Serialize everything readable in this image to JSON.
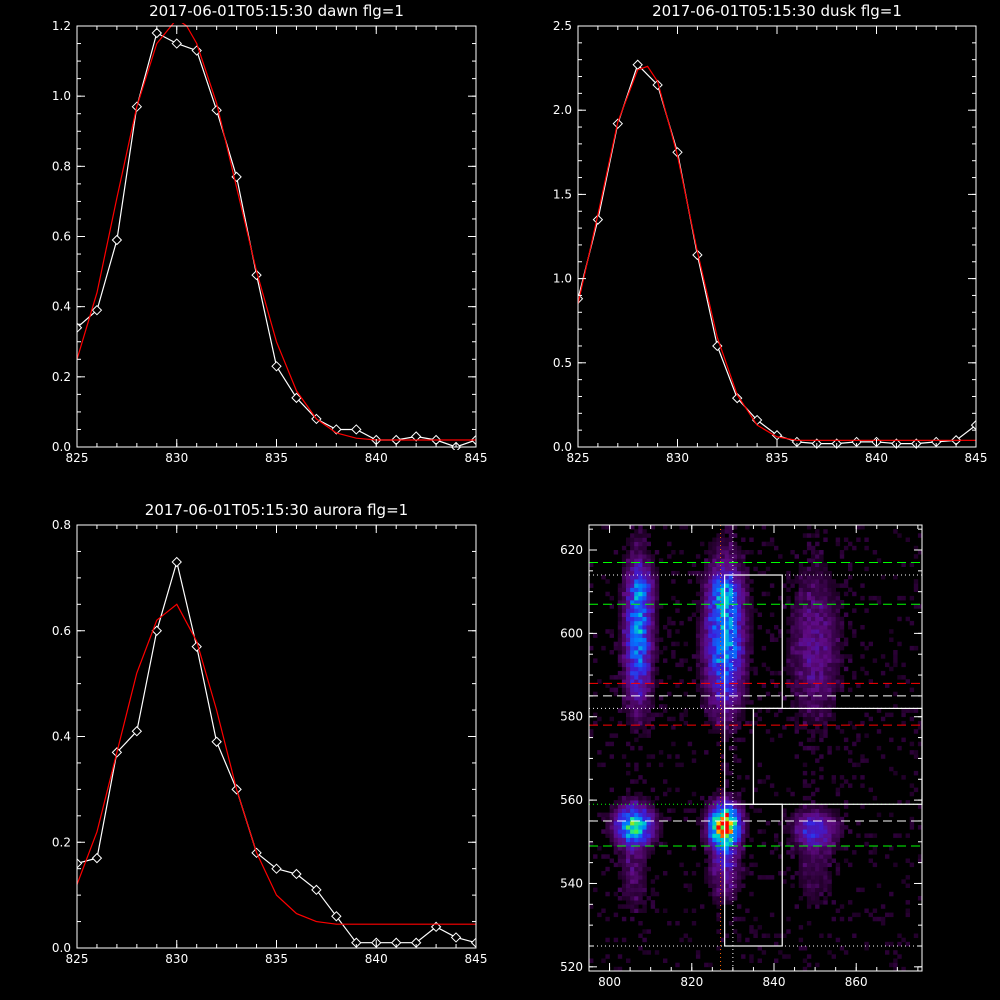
{
  "page": {
    "background": "#000000",
    "foreground": "#ffffff",
    "fit_color": "#ff0000"
  },
  "chart_data": [
    {
      "type": "line",
      "title": "2017-06-01T05:15:30 dawn flg=1",
      "xlim": [
        825,
        845
      ],
      "ylim": [
        0,
        1.2
      ],
      "x_ticks": [
        "825",
        "830",
        "835",
        "840",
        "845"
      ],
      "y_ticks": [
        "0.0",
        "0.2",
        "0.4",
        "0.6",
        "0.8",
        "1.0",
        "1.2"
      ],
      "series": [
        {
          "role": "data",
          "color": "#ffffff",
          "marker": "diamond",
          "x": [
            825,
            826,
            827,
            828,
            829,
            830,
            831,
            832,
            833,
            834,
            835,
            836,
            837,
            838,
            839,
            840,
            841,
            842,
            843,
            844,
            845
          ],
          "y": [
            0.34,
            0.39,
            0.59,
            0.97,
            1.18,
            1.15,
            1.13,
            0.96,
            0.77,
            0.49,
            0.23,
            0.14,
            0.08,
            0.05,
            0.05,
            0.02,
            0.02,
            0.03,
            0.02,
            0.0,
            0.02
          ]
        },
        {
          "role": "fit",
          "color": "#ff0000",
          "x": [
            825,
            826,
            827,
            828,
            829,
            830,
            830.5,
            831,
            832,
            833,
            834,
            835,
            836,
            837,
            838,
            839,
            840,
            841,
            842,
            843,
            844,
            845
          ],
          "y": [
            0.25,
            0.44,
            0.71,
            0.97,
            1.15,
            1.22,
            1.2,
            1.15,
            0.98,
            0.74,
            0.5,
            0.3,
            0.16,
            0.08,
            0.04,
            0.025,
            0.02,
            0.02,
            0.02,
            0.02,
            0.02,
            0.02
          ]
        }
      ]
    },
    {
      "type": "line",
      "title": "2017-06-01T05:15:30 dusk flg=1",
      "xlim": [
        825,
        845
      ],
      "ylim": [
        0,
        2.5
      ],
      "x_ticks": [
        "825",
        "830",
        "835",
        "840",
        "845"
      ],
      "y_ticks": [
        "0.0",
        "0.5",
        "1.0",
        "1.5",
        "2.0",
        "2.5"
      ],
      "series": [
        {
          "role": "data",
          "color": "#ffffff",
          "marker": "diamond",
          "x": [
            825,
            826,
            827,
            828,
            829,
            830,
            831,
            832,
            833,
            834,
            835,
            836,
            837,
            838,
            839,
            840,
            841,
            842,
            843,
            844,
            845
          ],
          "y": [
            0.88,
            1.35,
            1.92,
            2.27,
            2.15,
            1.75,
            1.14,
            0.6,
            0.29,
            0.16,
            0.07,
            0.03,
            0.02,
            0.02,
            0.03,
            0.03,
            0.02,
            0.02,
            0.03,
            0.04,
            0.13
          ]
        },
        {
          "role": "fit",
          "color": "#ff0000",
          "x": [
            825,
            826,
            827,
            828,
            828.5,
            829,
            830,
            831,
            832,
            833,
            834,
            835,
            836,
            837,
            838,
            839,
            840,
            841,
            842,
            843,
            844,
            845
          ],
          "y": [
            0.85,
            1.38,
            1.93,
            2.24,
            2.26,
            2.17,
            1.73,
            1.16,
            0.65,
            0.31,
            0.13,
            0.06,
            0.04,
            0.04,
            0.04,
            0.04,
            0.04,
            0.04,
            0.04,
            0.04,
            0.04,
            0.04
          ]
        }
      ]
    },
    {
      "type": "line",
      "title": "2017-06-01T05:15:30 aurora flg=1",
      "xlim": [
        825,
        845
      ],
      "ylim": [
        0,
        0.8
      ],
      "x_ticks": [
        "825",
        "830",
        "835",
        "840",
        "845"
      ],
      "y_ticks": [
        "0.0",
        "0.2",
        "0.4",
        "0.6",
        "0.8"
      ],
      "series": [
        {
          "role": "data",
          "color": "#ffffff",
          "marker": "diamond",
          "x": [
            825,
            826,
            827,
            828,
            829,
            830,
            831,
            832,
            833,
            834,
            835,
            836,
            837,
            838,
            839,
            840,
            841,
            842,
            843,
            844,
            845
          ],
          "y": [
            0.16,
            0.17,
            0.37,
            0.41,
            0.6,
            0.73,
            0.57,
            0.39,
            0.3,
            0.18,
            0.15,
            0.14,
            0.11,
            0.06,
            0.01,
            0.01,
            0.01,
            0.01,
            0.04,
            0.02,
            0.01
          ]
        },
        {
          "role": "fit",
          "color": "#ff0000",
          "x": [
            825,
            826,
            827,
            828,
            829,
            830,
            831,
            832,
            833,
            834,
            835,
            836,
            837,
            838,
            839,
            840,
            841,
            842,
            843,
            844,
            845
          ],
          "y": [
            0.12,
            0.22,
            0.37,
            0.52,
            0.62,
            0.65,
            0.58,
            0.45,
            0.3,
            0.18,
            0.1,
            0.065,
            0.05,
            0.045,
            0.045,
            0.045,
            0.045,
            0.045,
            0.045,
            0.045,
            0.045
          ]
        }
      ]
    },
    {
      "type": "heatmap",
      "title": "",
      "xlim": [
        795,
        876
      ],
      "ylim": [
        519,
        626
      ],
      "x_ticks": [
        "800",
        "820",
        "840",
        "860"
      ],
      "y_ticks": [
        "520",
        "540",
        "560",
        "580",
        "600",
        "620"
      ],
      "blobs": [
        {
          "x": 807,
          "y": 600,
          "sx": 2.2,
          "sy": 11,
          "amp": 0.45
        },
        {
          "x": 808,
          "y": 611,
          "sx": 2,
          "sy": 3,
          "amp": 0.18
        },
        {
          "x": 828,
          "y": 599,
          "sx": 3,
          "sy": 11,
          "amp": 0.5
        },
        {
          "x": 828,
          "y": 610,
          "sx": 2.5,
          "sy": 3,
          "amp": 0.2
        },
        {
          "x": 850,
          "y": 597,
          "sx": 4,
          "sy": 12,
          "amp": 0.16
        },
        {
          "x": 806,
          "y": 554,
          "sx": 3,
          "sy": 3,
          "amp": 0.6
        },
        {
          "x": 806,
          "y": 544,
          "sx": 2.5,
          "sy": 8,
          "amp": 0.1
        },
        {
          "x": 828,
          "y": 554,
          "sx": 2.3,
          "sy": 3.2,
          "amp": 1.0
        },
        {
          "x": 828,
          "y": 545,
          "sx": 2.5,
          "sy": 6,
          "amp": 0.2
        },
        {
          "x": 850,
          "y": 553,
          "sx": 3.5,
          "sy": 3,
          "amp": 0.28
        },
        {
          "x": 850,
          "y": 543,
          "sx": 3,
          "sy": 6,
          "amp": 0.08
        }
      ],
      "h_lines": [
        {
          "y": 617,
          "color": "#00ff00",
          "style": "dashed"
        },
        {
          "y": 614,
          "color": "#ffffff",
          "style": "dotted"
        },
        {
          "y": 607,
          "color": "#00ff00",
          "style": "dashed"
        },
        {
          "y": 588,
          "color": "#ff0000",
          "style": "dashed"
        },
        {
          "y": 585,
          "color": "#ffffff",
          "style": "dashed"
        },
        {
          "y": 582,
          "color": "#ffffff",
          "style": "dotted"
        },
        {
          "y": 578,
          "color": "#ff0000",
          "style": "dashed"
        },
        {
          "y": 559,
          "color": "#00ff00",
          "style": "dotted"
        },
        {
          "y": 555,
          "color": "#ffffff",
          "style": "dashed"
        },
        {
          "y": 549,
          "color": "#00ff00",
          "style": "dashed"
        },
        {
          "y": 525,
          "color": "#ffffff",
          "style": "dotted"
        }
      ],
      "v_lines": [
        {
          "x": 827,
          "color": "#ff6600",
          "style": "dotted"
        },
        {
          "x": 830,
          "color": "#ffffff",
          "style": "dotted"
        }
      ],
      "rectangles": [
        {
          "x0": 828,
          "x1": 842,
          "y0": 582,
          "y1": 614
        },
        {
          "x0": 828,
          "x1": 835,
          "y0": 559,
          "y1": 582
        },
        {
          "x0": 835,
          "x1": 876,
          "y0": 559,
          "y1": 582
        },
        {
          "x0": 828,
          "x1": 842,
          "y0": 525,
          "y1": 559
        }
      ]
    }
  ]
}
